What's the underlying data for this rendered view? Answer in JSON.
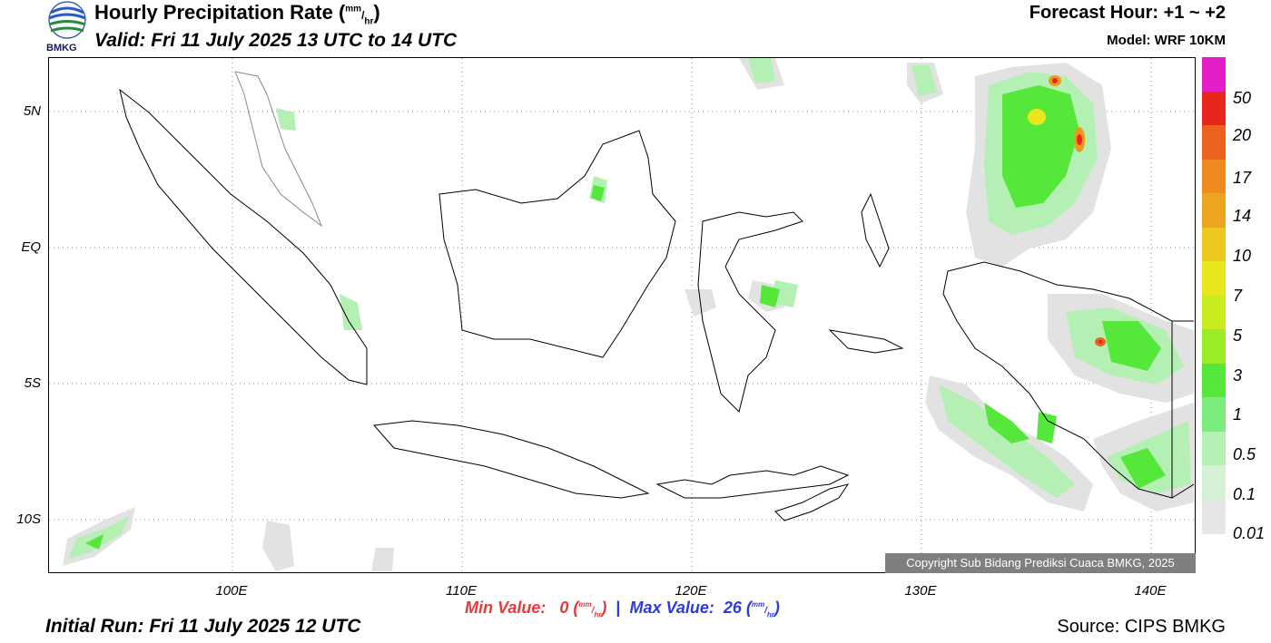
{
  "header": {
    "title_main": "Hourly Precipitation Rate (",
    "title_unit_num": "mm",
    "title_unit_slash": "/",
    "title_unit_den": "hr",
    "title_close": ")",
    "valid": "Valid: Fri 11 July 2025 13 UTC to 14 UTC",
    "forecast_hour": "Forecast Hour: +1 ~ +2",
    "model": "Model: WRF 10KM",
    "logo_text": "BMKG"
  },
  "axes": {
    "lat_labels": [
      "5N",
      "EQ",
      "5S",
      "10S"
    ],
    "lon_labels": [
      "100E",
      "110E",
      "120E",
      "130E",
      "140E"
    ]
  },
  "legend": {
    "labels": [
      "50",
      "20",
      "17",
      "14",
      "10",
      "7",
      "5",
      "3",
      "1",
      "0.5",
      "0.1",
      "0.01"
    ],
    "colors": [
      "#e31ec8",
      "#e8261e",
      "#ec621e",
      "#ef8a1e",
      "#eba51e",
      "#ecc81e",
      "#eae61e",
      "#c8ec1e",
      "#9aec28",
      "#55e83a",
      "#7cec7c",
      "#b4f0b4",
      "#d6f0d6",
      "#e6e6e6"
    ]
  },
  "footer": {
    "copyright": "Copyright Sub Bidang Prediksi Cuaca BMKG, 2025",
    "min_label": "Min Value:",
    "min_value": "0",
    "max_label": "Max Value:",
    "max_value": "26",
    "unit_num": "mm",
    "unit_slash": "/",
    "unit_den": "hr",
    "separator": "|",
    "initial_run": "Initial Run: Fri 11 July 2025 12 UTC",
    "source": "Source: CIPS BMKG"
  }
}
